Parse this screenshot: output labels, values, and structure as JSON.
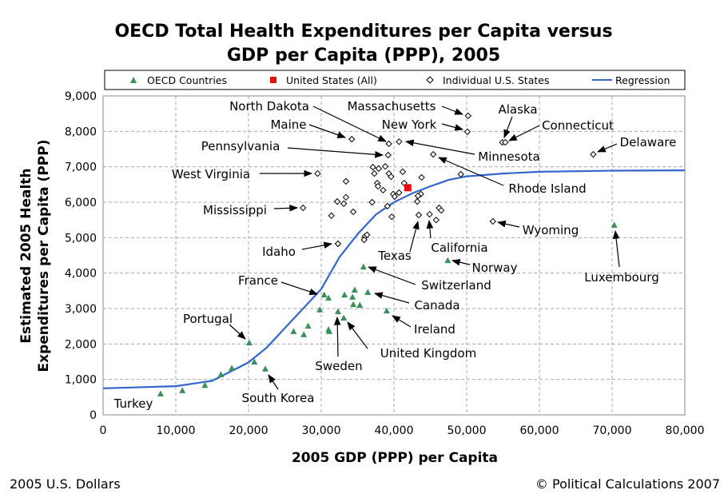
{
  "chart_data": {
    "type": "scatter",
    "title": [
      "OECD Total Health Expenditures per Capita versus",
      "GDP per Capita (PPP), 2005"
    ],
    "xlabel": "2005 GDP (PPP) per Capita",
    "ylabel": [
      "Estimated 2005 Health",
      "Expenditures per Capita (PPP)"
    ],
    "xlim": [
      0,
      80000
    ],
    "ylim": [
      0,
      9000
    ],
    "xticks": [
      "0",
      "10,000",
      "20,000",
      "30,000",
      "40,000",
      "50,000",
      "60,000",
      "70,000",
      "80,000"
    ],
    "yticks": [
      "0",
      "1,000",
      "2,000",
      "3,000",
      "4,000",
      "5,000",
      "6,000",
      "7,000",
      "8,000",
      "9,000"
    ],
    "grid": true,
    "legend_position": "top",
    "colors": {
      "oecd": "#3a8f5c",
      "us": "#e31010",
      "states": "#000000",
      "regression": "#3366cc"
    },
    "series": [
      {
        "name": "OECD Countries",
        "marker": "triangle",
        "points": [
          [
            7900,
            590
          ],
          [
            10900,
            680
          ],
          [
            14000,
            830
          ],
          [
            16200,
            1130
          ],
          [
            17700,
            1310
          ],
          [
            20100,
            2030
          ],
          [
            20800,
            1490
          ],
          [
            22300,
            1290
          ],
          [
            26200,
            2350
          ],
          [
            27600,
            2260
          ],
          [
            28200,
            2500
          ],
          [
            29800,
            2960
          ],
          [
            30400,
            3380
          ],
          [
            31000,
            3290
          ],
          [
            31100,
            2350
          ],
          [
            31000,
            2400
          ],
          [
            32300,
            2910
          ],
          [
            33100,
            2730
          ],
          [
            33200,
            3380
          ],
          [
            34600,
            3520
          ],
          [
            34300,
            3320
          ],
          [
            34400,
            3110
          ],
          [
            35300,
            3090
          ],
          [
            36400,
            3450
          ],
          [
            35800,
            4170
          ],
          [
            39000,
            2930
          ],
          [
            47400,
            4350
          ],
          [
            70300,
            5350
          ]
        ]
      },
      {
        "name": "United States (All)",
        "marker": "square",
        "points": [
          [
            41900,
            6410
          ]
        ]
      },
      {
        "name": "Individual U.S. States",
        "marker": "diamond",
        "points": [
          [
            50200,
            8440
          ],
          [
            50100,
            7990
          ],
          [
            34200,
            7780
          ],
          [
            39300,
            7650
          ],
          [
            40700,
            7710
          ],
          [
            39200,
            7330
          ],
          [
            45400,
            7350
          ],
          [
            29500,
            6810
          ],
          [
            49200,
            6790
          ],
          [
            33400,
            6590
          ],
          [
            37100,
            6990
          ],
          [
            37900,
            6950
          ],
          [
            38800,
            7010
          ],
          [
            37300,
            6810
          ],
          [
            39300,
            6810
          ],
          [
            39600,
            6720
          ],
          [
            41200,
            6860
          ],
          [
            43800,
            6700
          ],
          [
            41400,
            6540
          ],
          [
            37700,
            6540
          ],
          [
            37800,
            6450
          ],
          [
            38500,
            6340
          ],
          [
            39900,
            6230
          ],
          [
            40700,
            6270
          ],
          [
            40100,
            6160
          ],
          [
            43700,
            6230
          ],
          [
            43300,
            6180
          ],
          [
            43200,
            6020
          ],
          [
            37000,
            6000
          ],
          [
            33400,
            6140
          ],
          [
            32200,
            6020
          ],
          [
            33100,
            5960
          ],
          [
            27500,
            5840
          ],
          [
            34400,
            5730
          ],
          [
            31400,
            5620
          ],
          [
            39100,
            5890
          ],
          [
            39700,
            5590
          ],
          [
            43400,
            5640
          ],
          [
            44900,
            5660
          ],
          [
            46200,
            5840
          ],
          [
            46500,
            5770
          ],
          [
            45800,
            5500
          ],
          [
            53600,
            5460
          ],
          [
            36000,
            5030
          ],
          [
            36300,
            5080
          ],
          [
            35900,
            4940
          ],
          [
            32300,
            4830
          ],
          [
            54900,
            7690
          ],
          [
            55300,
            7690
          ],
          [
            67400,
            7350
          ]
        ]
      },
      {
        "name": "Regression",
        "type": "line",
        "points": [
          [
            0,
            750
          ],
          [
            10000,
            810
          ],
          [
            15000,
            960
          ],
          [
            20000,
            1480
          ],
          [
            22500,
            1900
          ],
          [
            25000,
            2450
          ],
          [
            27500,
            3000
          ],
          [
            30000,
            3550
          ],
          [
            32500,
            4450
          ],
          [
            35000,
            5100
          ],
          [
            37500,
            5650
          ],
          [
            40000,
            6000
          ],
          [
            42500,
            6250
          ],
          [
            45000,
            6450
          ],
          [
            47500,
            6630
          ],
          [
            50000,
            6730
          ],
          [
            55000,
            6810
          ],
          [
            60000,
            6860
          ],
          [
            70000,
            6890
          ],
          [
            80000,
            6900
          ]
        ]
      }
    ],
    "annotations": [
      {
        "text": "North Dakota",
        "x": 39300,
        "y": 7650
      },
      {
        "text": "Massachusetts",
        "x": 50200,
        "y": 8440
      },
      {
        "text": "Maine",
        "x": 34200,
        "y": 7780
      },
      {
        "text": "New York",
        "x": 50100,
        "y": 7990
      },
      {
        "text": "Alaska",
        "x": 54900,
        "y": 7690
      },
      {
        "text": "Connecticut",
        "x": 55300,
        "y": 7690
      },
      {
        "text": "Delaware",
        "x": 67400,
        "y": 7350
      },
      {
        "text": "Pennsylvania",
        "x": 39200,
        "y": 7330
      },
      {
        "text": "Minnesota",
        "x": 40700,
        "y": 7710
      },
      {
        "text": "West Virginia",
        "x": 29500,
        "y": 6810
      },
      {
        "text": "Rhode Island",
        "x": 45400,
        "y": 7350
      },
      {
        "text": "Mississippi",
        "x": 27500,
        "y": 5840
      },
      {
        "text": "Wyoming",
        "x": 53600,
        "y": 5460
      },
      {
        "text": "Idaho",
        "x": 32300,
        "y": 4830
      },
      {
        "text": "California",
        "x": 44900,
        "y": 5660
      },
      {
        "text": "Texas",
        "x": 43400,
        "y": 5640
      },
      {
        "text": "France",
        "x": 30400,
        "y": 3380
      },
      {
        "text": "Switzerland",
        "x": 35800,
        "y": 4170
      },
      {
        "text": "Norway",
        "x": 47400,
        "y": 4350
      },
      {
        "text": "Luxembourg",
        "x": 70300,
        "y": 5350
      },
      {
        "text": "Canada",
        "x": 36400,
        "y": 3450
      },
      {
        "text": "Portugal",
        "x": 20100,
        "y": 2030
      },
      {
        "text": "Ireland",
        "x": 39000,
        "y": 2930
      },
      {
        "text": "United Kingdom",
        "x": 33100,
        "y": 2730
      },
      {
        "text": "Sweden",
        "x": 32300,
        "y": 2910
      },
      {
        "text": "South Korea",
        "x": 22300,
        "y": 1290
      },
      {
        "text": "Turkey",
        "x": 7900,
        "y": 590
      }
    ]
  },
  "footer": {
    "left": "2005 U.S. Dollars",
    "right": "© Political Calculations 2007"
  }
}
